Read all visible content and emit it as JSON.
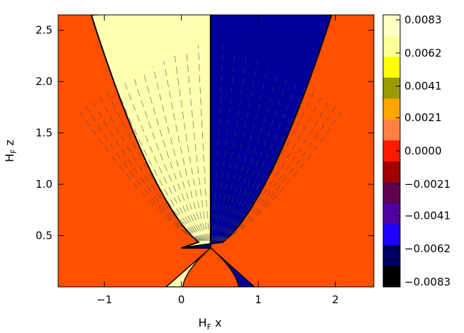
{
  "chart_data": {
    "type": "heatmap",
    "xlabel": "H",
    "xlabel_sub": "F",
    "xlabel_tail": " x",
    "ylabel": "H",
    "ylabel_sub": "F",
    "ylabel_tail": " z",
    "xlim": [
      -1.6,
      2.5
    ],
    "ylim": [
      0.0,
      2.65
    ],
    "x_ticks": [
      -1,
      0,
      1,
      2
    ],
    "x_tick_labels": [
      "−1",
      "0",
      "1",
      "2"
    ],
    "y_ticks": [
      0.5,
      1.0,
      1.5,
      2.0,
      2.5
    ],
    "y_tick_labels": [
      "0.5",
      "1.0",
      "1.5",
      "2.0",
      "2.5"
    ],
    "colorbar": {
      "ticks": [
        "0.0083",
        "0.0062",
        "0.0041",
        "0.0021",
        "0.0000",
        "−0.0021",
        "−0.0041",
        "−0.0062",
        "−0.0083"
      ],
      "values": [
        0.0083,
        0.0062,
        0.0041,
        0.0021,
        0.0,
        -0.0021,
        -0.0041,
        -0.0062,
        -0.0083
      ],
      "colors": [
        "#ffffc8",
        "#ffff99",
        "#ffff00",
        "#9a9a00",
        "#ffa500",
        "#ff8040",
        "#ff1a00",
        "#a00000",
        "#600050",
        "#5000a0",
        "#2000ff",
        "#000060",
        "#000000"
      ]
    },
    "colors": {
      "background": "#ff5000",
      "positive_plume": "#ffffb0",
      "negative_plume": "#00009b",
      "contour": "#000000"
    }
  }
}
